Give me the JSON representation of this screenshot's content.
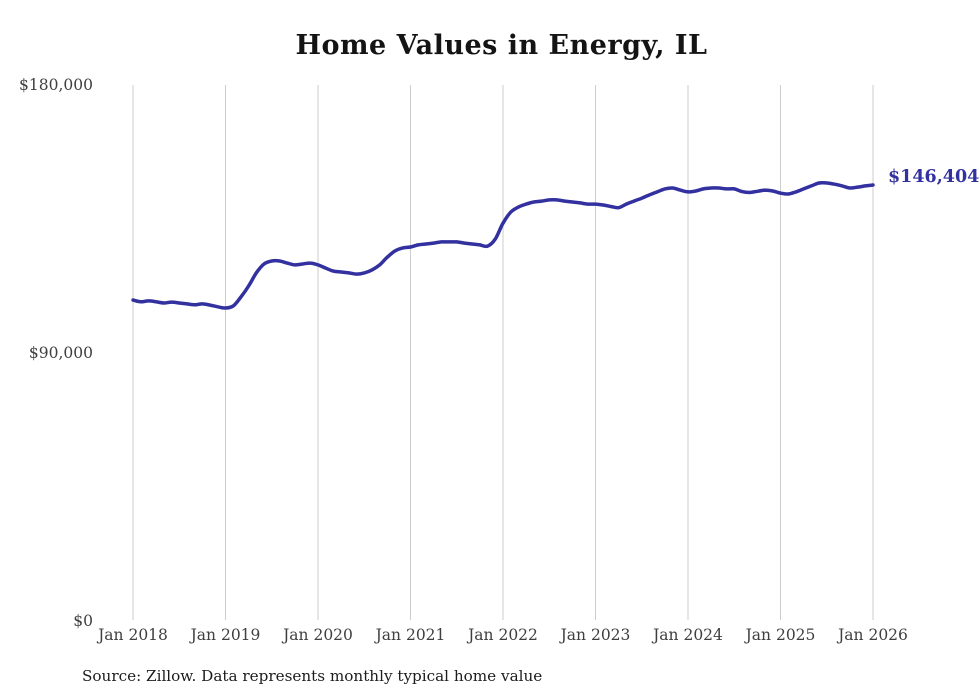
{
  "title": "Home Values in Energy, IL",
  "source_note": "Source: Zillow. Data represents monthly typical home value",
  "end_label": "$146,404",
  "colors": {
    "line": "#32319f",
    "grid": "#cdcdcd",
    "axis_text": "#3f3f3f",
    "title_text": "#141414",
    "source_text": "#1c1c1c"
  },
  "chart_data": {
    "type": "line",
    "title": "Home Values in Energy, IL",
    "xlabel": "",
    "ylabel": "",
    "ylim": [
      0,
      180000
    ],
    "grid": "vertical-only",
    "legend": "none",
    "y_ticks": [
      {
        "label": "$180,000",
        "value": 180000
      },
      {
        "label": "$90,000",
        "value": 90000
      },
      {
        "label": "$0",
        "value": 0
      }
    ],
    "x_tick_labels": [
      "Jan 2018",
      "Jan 2019",
      "Jan 2020",
      "Jan 2021",
      "Jan 2022",
      "Jan 2023",
      "Jan 2024",
      "Jan 2025",
      "Jan 2026"
    ],
    "series_name": "Typical home value",
    "x": [
      "2018-01",
      "2018-02",
      "2018-03",
      "2018-04",
      "2018-05",
      "2018-06",
      "2018-07",
      "2018-08",
      "2018-09",
      "2018-10",
      "2018-11",
      "2018-12",
      "2019-01",
      "2019-02",
      "2019-03",
      "2019-04",
      "2019-05",
      "2019-06",
      "2019-07",
      "2019-08",
      "2019-09",
      "2019-10",
      "2019-11",
      "2019-12",
      "2020-01",
      "2020-02",
      "2020-03",
      "2020-04",
      "2020-05",
      "2020-06",
      "2020-07",
      "2020-08",
      "2020-09",
      "2020-10",
      "2020-11",
      "2020-12",
      "2021-01",
      "2021-02",
      "2021-03",
      "2021-04",
      "2021-05",
      "2021-06",
      "2021-07",
      "2021-08",
      "2021-09",
      "2021-10",
      "2021-11",
      "2021-12",
      "2022-01",
      "2022-02",
      "2022-03",
      "2022-04",
      "2022-05",
      "2022-06",
      "2022-07",
      "2022-08",
      "2022-09",
      "2022-10",
      "2022-11",
      "2022-12",
      "2023-01",
      "2023-02",
      "2023-03",
      "2023-04",
      "2023-05",
      "2023-06",
      "2023-07",
      "2023-08",
      "2023-09",
      "2023-10",
      "2023-11",
      "2023-12",
      "2024-01",
      "2024-02",
      "2024-03",
      "2024-04",
      "2024-05",
      "2024-06",
      "2024-07",
      "2024-08",
      "2024-09",
      "2024-10",
      "2024-11",
      "2024-12",
      "2025-01",
      "2025-02",
      "2025-03",
      "2025-04",
      "2025-05",
      "2025-06",
      "2025-07",
      "2025-08",
      "2025-09",
      "2025-10",
      "2025-11",
      "2025-12",
      "2026-01"
    ],
    "values": [
      107800,
      107200,
      107500,
      107200,
      106800,
      107100,
      106800,
      106500,
      106200,
      106500,
      106100,
      105500,
      105100,
      105800,
      108800,
      112500,
      116900,
      119900,
      120900,
      120900,
      120200,
      119600,
      119900,
      120200,
      119600,
      118500,
      117500,
      117200,
      116900,
      116500,
      116900,
      117900,
      119600,
      122200,
      124300,
      125300,
      125600,
      126300,
      126600,
      126900,
      127300,
      127300,
      127300,
      126900,
      126600,
      126300,
      125900,
      128300,
      133600,
      137300,
      139000,
      140000,
      140700,
      141000,
      141400,
      141400,
      141000,
      140700,
      140400,
      140000,
      140000,
      139700,
      139200,
      138800,
      140000,
      141000,
      142000,
      143100,
      144100,
      145100,
      145400,
      144700,
      144100,
      144400,
      145100,
      145400,
      145400,
      145100,
      145100,
      144200,
      143900,
      144300,
      144700,
      144400,
      143700,
      143400,
      144100,
      145100,
      146100,
      147100,
      147100,
      146700,
      146100,
      145400,
      145700,
      146100,
      146404
    ],
    "end_annotation": {
      "text": "$146,404",
      "value": 146404
    }
  }
}
